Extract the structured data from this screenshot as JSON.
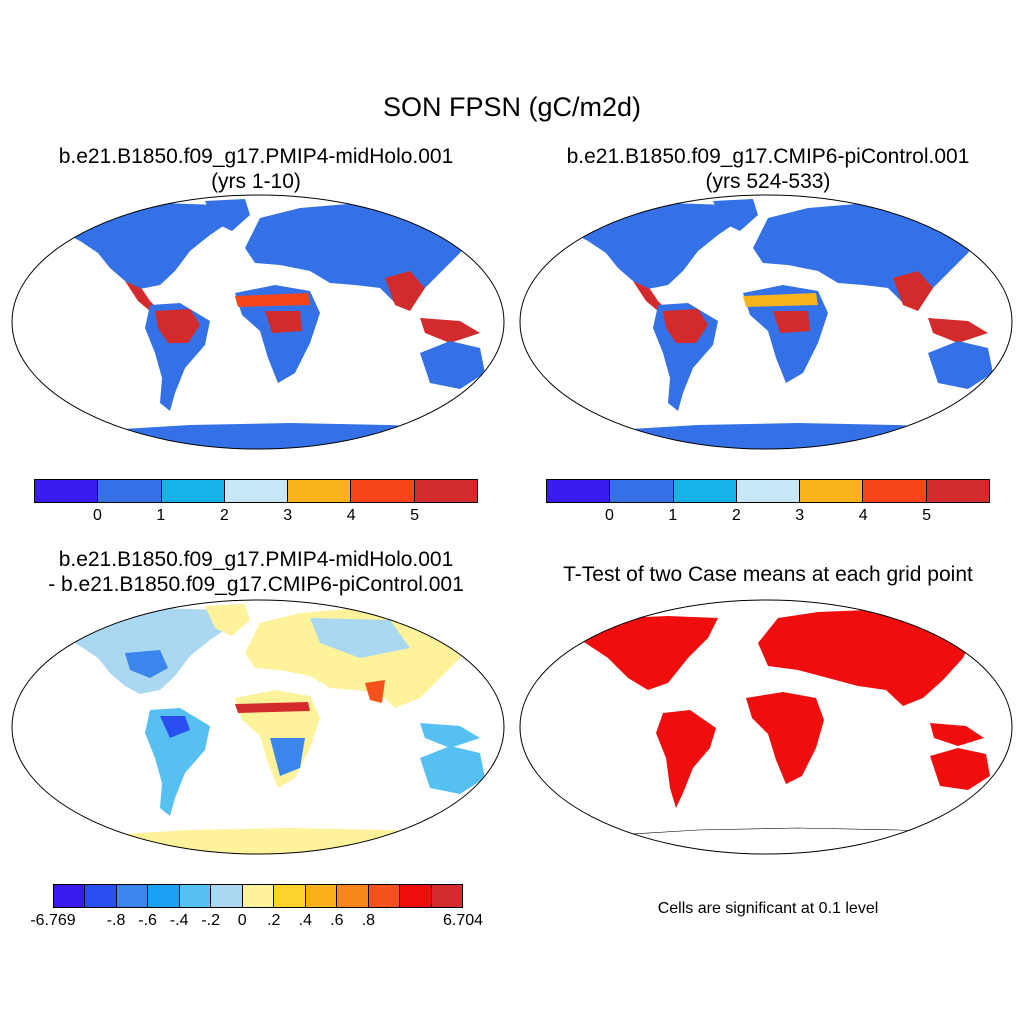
{
  "main_title": "SON FPSN (gC/m2d)",
  "panels": [
    {
      "title_line1": "b.e21.B1850.f09_g17.PMIP4-midHolo.001",
      "title_line2": "(yrs 1-10)"
    },
    {
      "title_line1": "b.e21.B1850.f09_g17.CMIP6-piControl.001",
      "title_line2": "(yrs 524-533)"
    },
    {
      "title_line1": "b.e21.B1850.f09_g17.PMIP4-midHolo.001",
      "title_line2": "- b.e21.B1850.f09_g17.CMIP6-piControl.001"
    },
    {
      "title_line1": "T-Test of two Case means at each grid point",
      "title_line2": ""
    }
  ],
  "colorbar_abs": {
    "colors": [
      "#3a1cf2",
      "#3471e6",
      "#16b2ec",
      "#c7e6f6",
      "#f9b31b",
      "#f7441a",
      "#d32b2c"
    ],
    "tick_labels": [
      "0",
      "1",
      "2",
      "3",
      "4",
      "5"
    ]
  },
  "colorbar_diff": {
    "colors": [
      "#3a1cf2",
      "#2a4ff0",
      "#3a86ec",
      "#1aa0f4",
      "#56c0f2",
      "#a9d8f0",
      "#fef39a",
      "#fcd22c",
      "#fbb01b",
      "#f8861a",
      "#f5521b",
      "#ef0d0d",
      "#d32b2c"
    ],
    "tick_labels": [
      "-6.769",
      "-.8",
      "-.6",
      "-.4",
      "-.2",
      "0",
      ".2",
      ".4",
      ".6",
      ".8",
      "6.704"
    ]
  },
  "significance_note": "Cells are significant at 0.1 level",
  "colors": {
    "land_low": "#3471e6",
    "land_high": "#d32b2c",
    "diff_land": "#fef39a",
    "significant": "#ef0d0d"
  }
}
